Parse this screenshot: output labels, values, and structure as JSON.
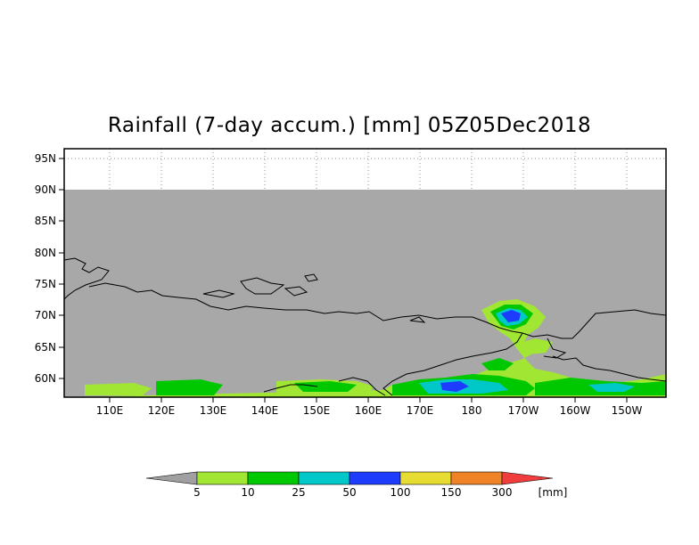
{
  "title": "Rainfall (7-day accum.) [mm] 05Z05Dec2018",
  "lat_labels": [
    "95N",
    "90N",
    "85N",
    "80N",
    "75N",
    "70N",
    "65N",
    "60N"
  ],
  "lon_labels": [
    "110E",
    "120E",
    "130E",
    "140E",
    "150E",
    "160E",
    "170E",
    "180",
    "170W",
    "160W",
    "150W"
  ],
  "colorbar": {
    "labels": [
      "5",
      "10",
      "25",
      "50",
      "100",
      "150",
      "300"
    ],
    "unit": "[mm]",
    "colors": [
      "#a0a0a0",
      "#a0e632",
      "#00c800",
      "#00c8c8",
      "#1e3cff",
      "#e6dc32",
      "#f08228",
      "#f03c3c"
    ]
  },
  "colors": {
    "no_data": "#ffffff",
    "background": "#a8a8a8",
    "coastline": "#000000"
  }
}
